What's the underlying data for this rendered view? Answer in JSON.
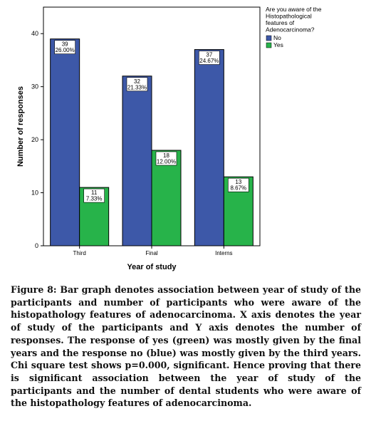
{
  "chart_data": {
    "type": "bar",
    "xlabel": "Year of study",
    "ylabel": "Number of responses",
    "ylim": [
      0,
      45
    ],
    "yticks": [
      0,
      10,
      20,
      30,
      40
    ],
    "categories": [
      "Third",
      "Final",
      "Interns"
    ],
    "legend": {
      "title": "Are you aware of the Histopathological features of Adenocarcinoma?",
      "title_lines": [
        "Are you aware of the",
        "Histopathological",
        "features of",
        "Adenocarcinoma?"
      ],
      "placement": "top-right"
    },
    "series": [
      {
        "name": "No",
        "color": "#3d58a8",
        "values": [
          39,
          32,
          37
        ],
        "labels": [
          "26.00%",
          "21.33%",
          "24.67%"
        ]
      },
      {
        "name": "Yes",
        "color": "#27b34a",
        "values": [
          11,
          18,
          13
        ],
        "labels": [
          "7.33%",
          "12.00%",
          "8.67%"
        ]
      }
    ],
    "grid": false
  },
  "caption": {
    "text": "Figure 8: Bar graph denotes association between year of study of the participants and number of participants who were aware of the histopathology features of adenocarcinoma. X axis denotes the year of study of the participants and Y axis denotes the number of responses. The response of yes (green) was mostly given by the final years and the response no (blue) was mostly given by the third years. Chi square test shows p=0.000, significant. Hence proving that there is significant association between the year of study of the participants and the number of dental students who were aware of the histopathology features of adenocarcinoma."
  }
}
